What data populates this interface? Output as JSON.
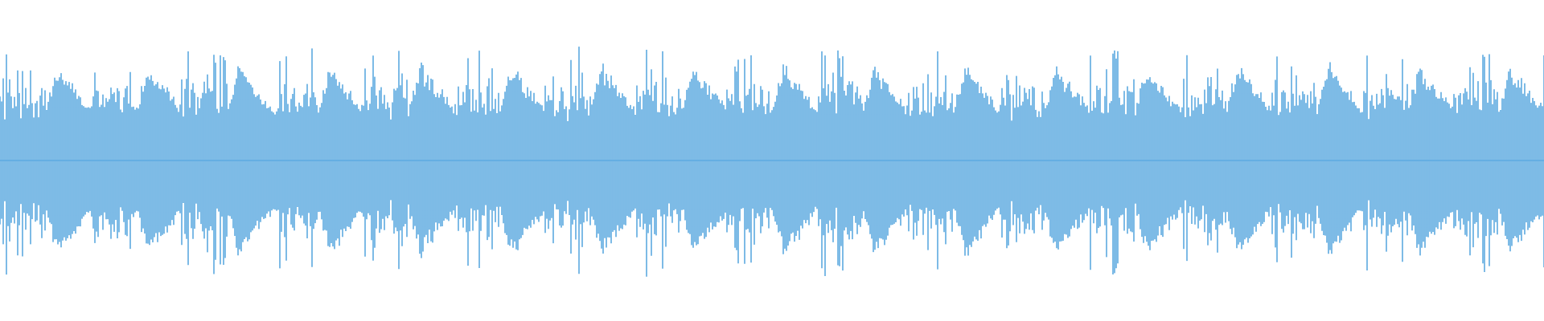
{
  "waveform": {
    "color": "#5DAAE0",
    "background": "#FFFFFF",
    "peak_amplitude": 0.85,
    "burst_count": 34
  }
}
